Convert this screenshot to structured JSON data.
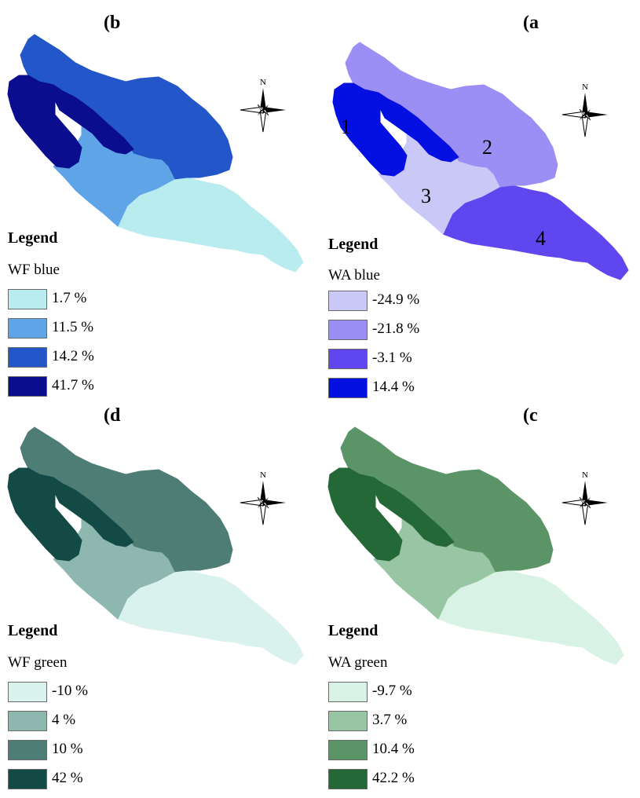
{
  "panels": [
    {
      "label": "(b",
      "legend_title": "Legend",
      "legend_sub": "WF blue",
      "items": [
        {
          "label": "1.7 %",
          "color": "#b9ecef"
        },
        {
          "label": "11.5 %",
          "color": "#5ea4e6"
        },
        {
          "label": "14.2 %",
          "color": "#2356c8"
        },
        {
          "label": "41.7 %",
          "color": "#0a0d8e"
        }
      ],
      "region_colors": {
        "r1": "#0a0d8e",
        "r2": "#2356c8",
        "r3": "#5ea4e6",
        "r4": "#b9ecef"
      }
    },
    {
      "label": "(a",
      "legend_title": "Legend",
      "legend_sub": "WA blue",
      "items": [
        {
          "label": "-24.9 %",
          "color": "#cac8f6"
        },
        {
          "label": "-21.8 %",
          "color": "#9b8ef4"
        },
        {
          "label": "-3.1 %",
          "color": "#6046ee"
        },
        {
          "label": "14.4 %",
          "color": "#0410e2"
        }
      ],
      "region_colors": {
        "r1": "#0410e2",
        "r2": "#9b8ef4",
        "r3": "#cac8f6",
        "r4": "#6046ee"
      },
      "region_numbers": [
        "1",
        "2",
        "3",
        "4"
      ]
    },
    {
      "label": "(d",
      "legend_title": "Legend",
      "legend_sub": "WF green",
      "items": [
        {
          "label": "-10 %",
          "color": "#d9f2ee"
        },
        {
          "label": "4 %",
          "color": "#8eb7b0"
        },
        {
          "label": "10 %",
          "color": "#4e7d76"
        },
        {
          "label": "42 %",
          "color": "#134a45"
        }
      ],
      "region_colors": {
        "r1": "#134a45",
        "r2": "#4e7d76",
        "r3": "#8eb7b0",
        "r4": "#d9f2ee"
      }
    },
    {
      "label": "(c",
      "legend_title": "Legend",
      "legend_sub": "WA green",
      "items": [
        {
          "label": "-9.7 %",
          "color": "#d8f2e6"
        },
        {
          "label": "3.7 %",
          "color": "#98c5a4"
        },
        {
          "label": "10.4 %",
          "color": "#5b9467"
        },
        {
          "label": "42.2 %",
          "color": "#256838"
        }
      ],
      "region_colors": {
        "r1": "#256838",
        "r2": "#5b9467",
        "r3": "#98c5a4",
        "r4": "#d8f2e6"
      }
    }
  ],
  "compass_letter": "N"
}
